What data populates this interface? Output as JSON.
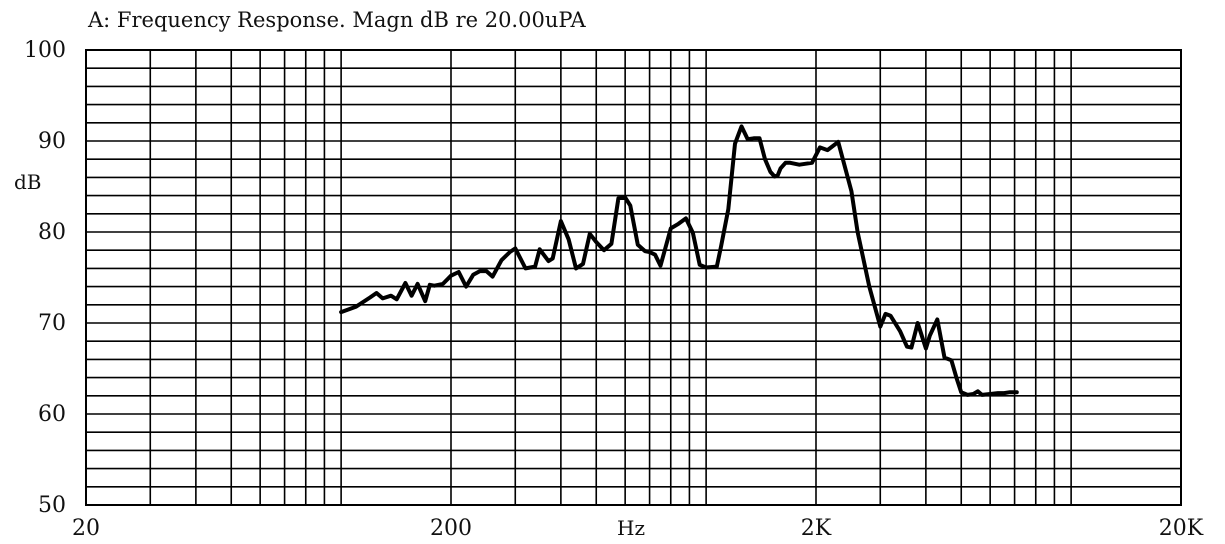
{
  "chart_data": {
    "type": "line",
    "title": "A: Frequency Response. Magn dB re 20.00uPA",
    "xlabel": "Hz",
    "ylabel": "dB",
    "x_scale": "log",
    "xlim": [
      20,
      20000
    ],
    "ylim": [
      50,
      100
    ],
    "x_ticks": [
      {
        "value": 20,
        "label": "20"
      },
      {
        "value": 200,
        "label": "200"
      },
      {
        "value": 2000,
        "label": "2K"
      },
      {
        "value": 20000,
        "label": "20K"
      }
    ],
    "y_ticks": [
      {
        "value": 50,
        "label": "50"
      },
      {
        "value": 60,
        "label": "60"
      },
      {
        "value": 70,
        "label": "70"
      },
      {
        "value": 80,
        "label": "80"
      },
      {
        "value": 90,
        "label": "90"
      },
      {
        "value": 100,
        "label": "100"
      }
    ],
    "grid": true,
    "line_color": "#000000",
    "series": [
      {
        "x": [
          100,
          110,
          120,
          125,
          130,
          137,
          142,
          150,
          156,
          162,
          170,
          175,
          180,
          190,
          200,
          210,
          220,
          230,
          240,
          250,
          260,
          275,
          290,
          300,
          320,
          340,
          350,
          370,
          380,
          400,
          420,
          440,
          460,
          480,
          500,
          525,
          550,
          575,
          600,
          620,
          650,
          680,
          700,
          725,
          750,
          800,
          840,
          880,
          920,
          960,
          1000,
          1070,
          1100,
          1150,
          1200,
          1250,
          1300,
          1350,
          1400,
          1450,
          1500,
          1540,
          1570,
          1600,
          1650,
          1700,
          1800,
          1950,
          2050,
          2150,
          2200,
          2300,
          2500,
          2600,
          2800,
          3000,
          3100,
          3200,
          3400,
          3550,
          3650,
          3800,
          4000,
          4100,
          4300,
          4500,
          4700,
          4850,
          5000,
          5200,
          5400,
          5550,
          5700,
          6000,
          6300,
          6550,
          6800,
          7100
        ],
        "y": [
          71.2,
          71.8,
          72.8,
          73.3,
          72.7,
          73.0,
          72.6,
          74.4,
          73.0,
          74.3,
          72.4,
          74.2,
          74.1,
          74.3,
          75.2,
          75.6,
          74.0,
          75.3,
          75.7,
          75.7,
          75.1,
          76.9,
          77.8,
          78.2,
          76.0,
          76.2,
          78.1,
          76.8,
          77.1,
          81.2,
          79.2,
          76.0,
          76.5,
          79.8,
          78.9,
          78.0,
          78.7,
          83.7,
          83.8,
          82.9,
          78.6,
          77.9,
          77.8,
          77.5,
          76.3,
          80.4,
          80.9,
          81.5,
          79.9,
          76.4,
          76.1,
          76.2,
          78.5,
          82.5,
          89.7,
          91.6,
          90.2,
          90.3,
          90.3,
          88.0,
          86.6,
          86.1,
          86.2,
          87.0,
          87.6,
          87.6,
          87.4,
          87.6,
          89.3,
          89.0,
          89.3,
          89.9,
          84.5,
          80.0,
          74.0,
          69.6,
          71.0,
          70.8,
          69.1,
          67.4,
          67.3,
          70.0,
          67.2,
          68.6,
          70.4,
          66.2,
          65.9,
          64.0,
          62.4,
          62.1,
          62.2,
          62.5,
          62.1,
          62.2,
          62.3,
          62.3,
          62.4,
          62.4
        ]
      }
    ]
  }
}
